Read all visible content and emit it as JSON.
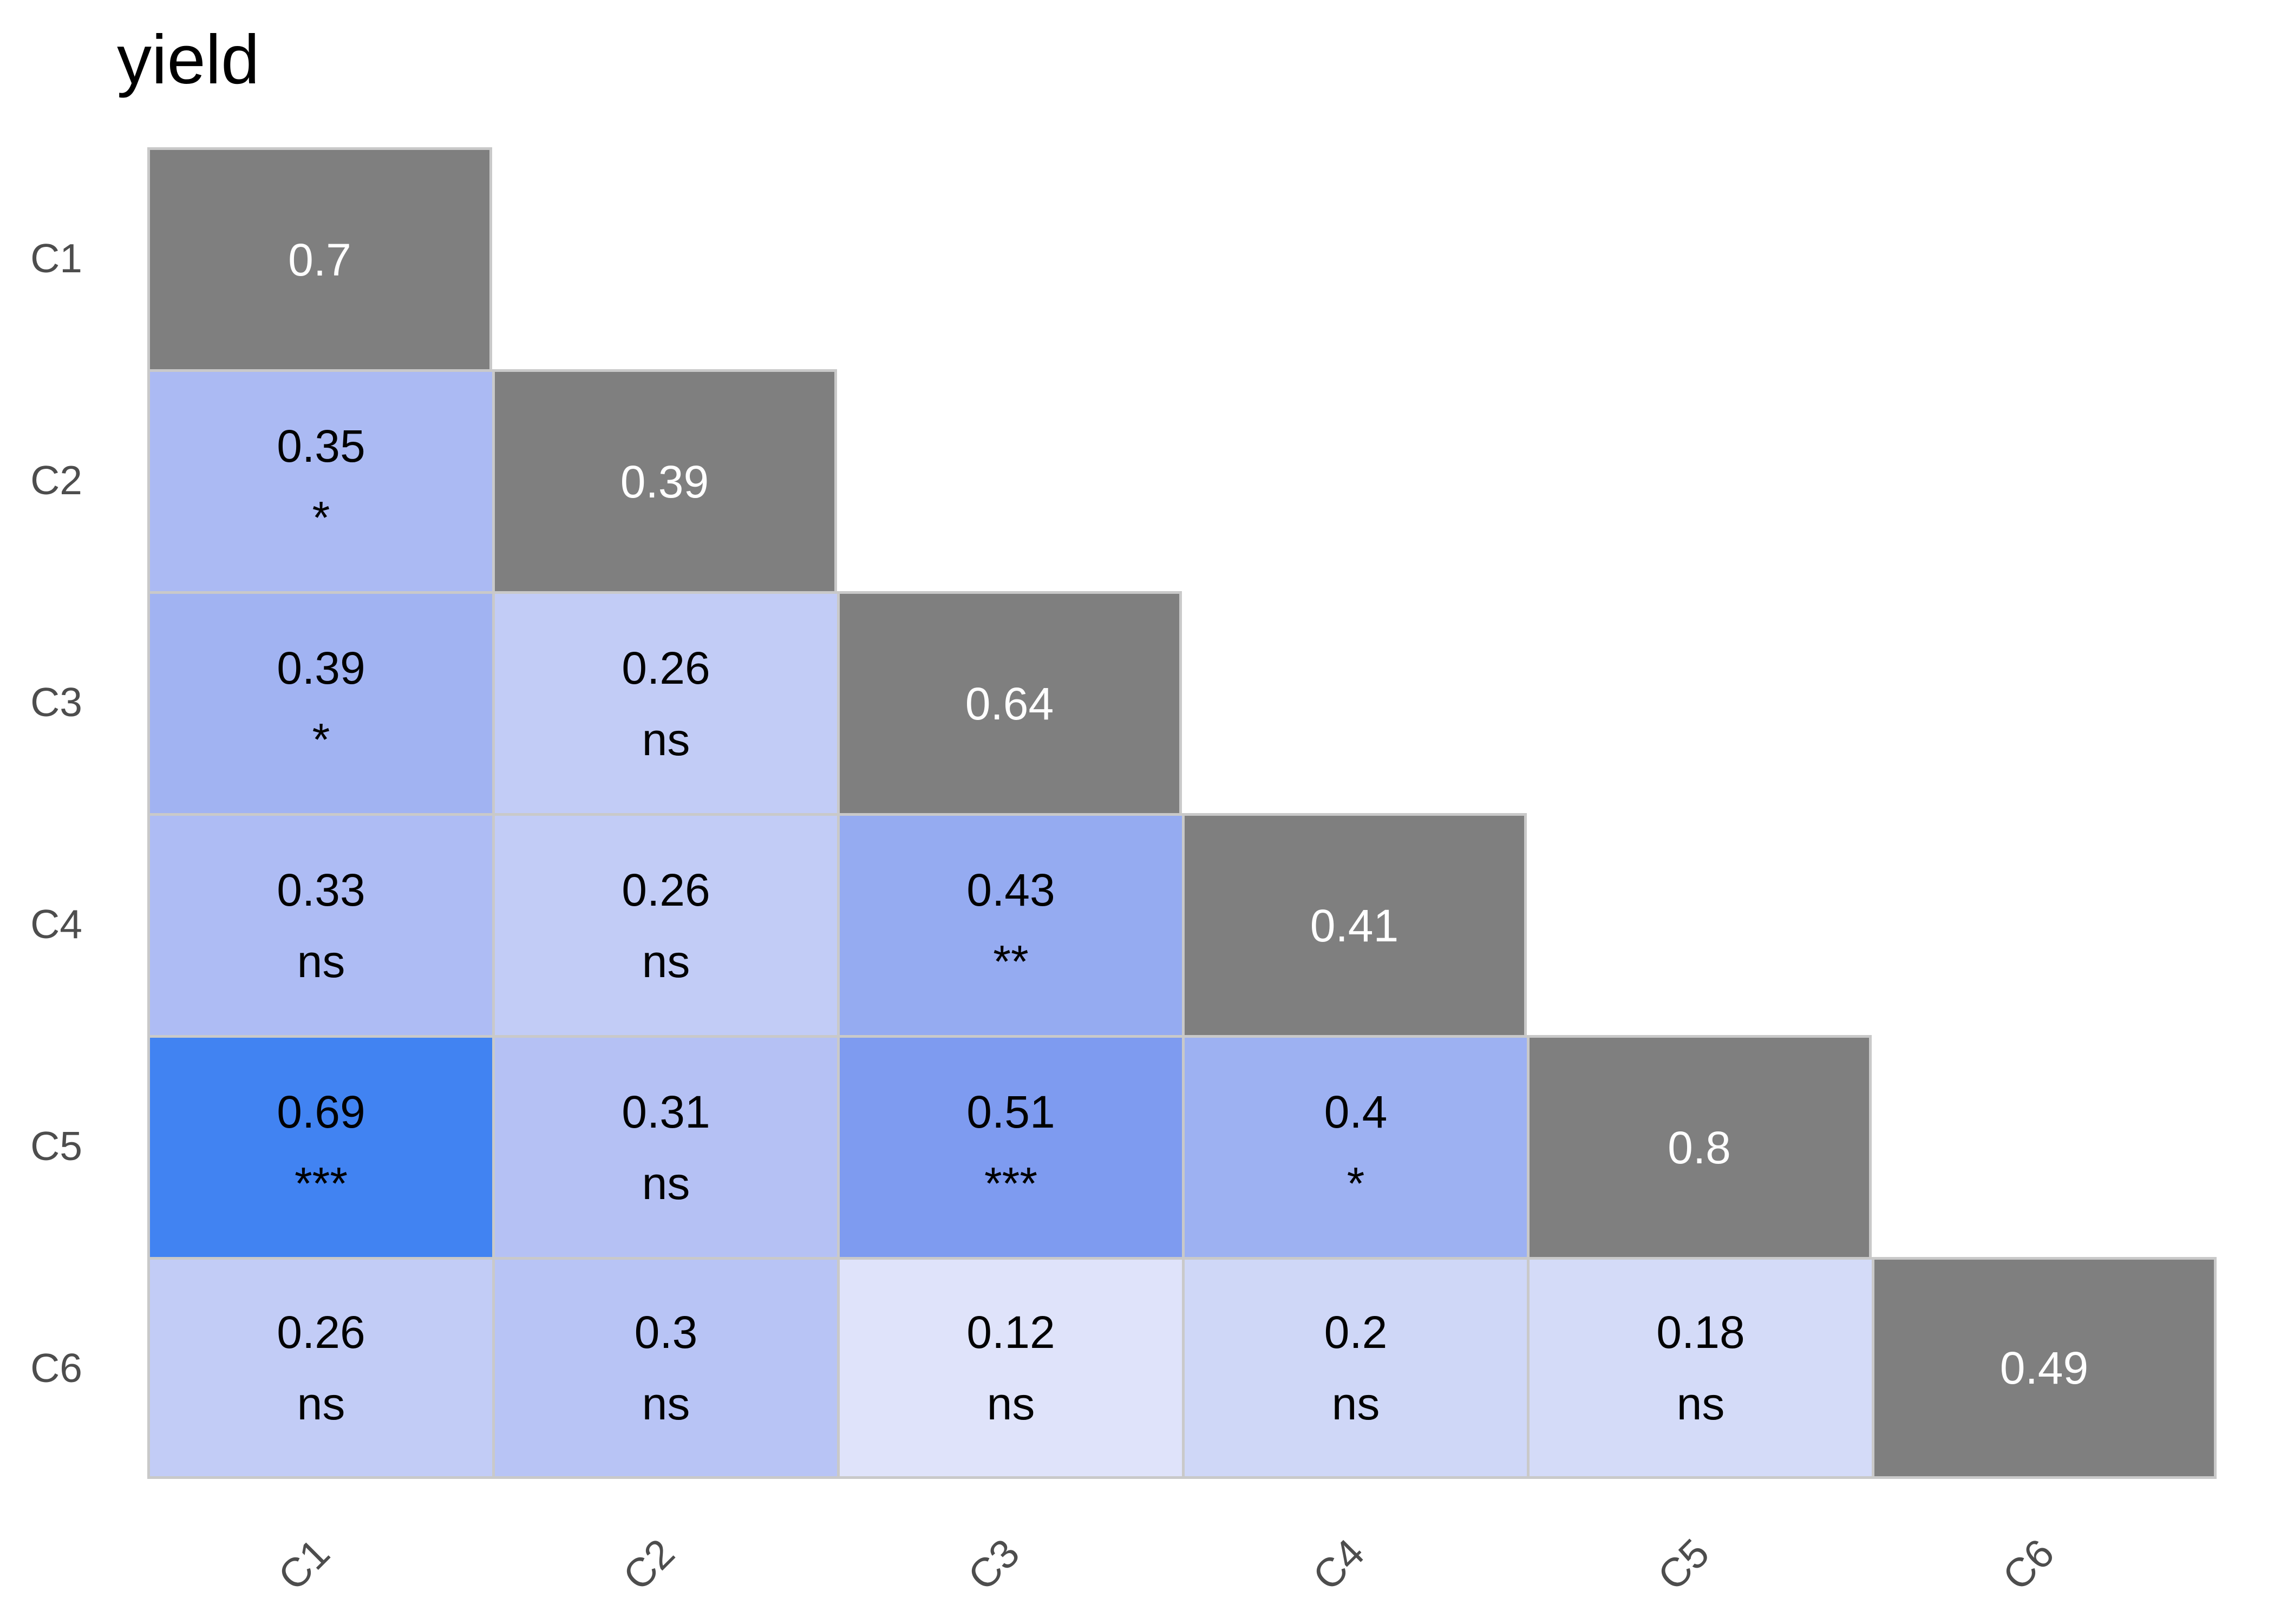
{
  "title": "yield",
  "axis": {
    "y_labels": [
      "C1",
      "C2",
      "C3",
      "C4",
      "C5",
      "C6"
    ],
    "x_labels": [
      "C1",
      "C2",
      "C3",
      "C4",
      "C5",
      "C6"
    ]
  },
  "colors": {
    "background": "#ffffff",
    "title_text": "#000000",
    "axis_text": "#4d4d4d",
    "grid_line": "#c9c9c9",
    "diagonal_fill": "#7f7f7f",
    "diagonal_text": "#ffffff",
    "value_text": "#000000"
  },
  "chart_data": {
    "type": "heatmap",
    "title": "yield",
    "shape": "lower-triangular-correlation-matrix",
    "x_labels": [
      "C1",
      "C2",
      "C3",
      "C4",
      "C5",
      "C6"
    ],
    "y_labels": [
      "C1",
      "C2",
      "C3",
      "C4",
      "C5",
      "C6"
    ],
    "legend": "none",
    "cells": [
      {
        "row": "C1",
        "col": "C1",
        "value": 0.7,
        "display": "0.7",
        "sig": null,
        "bg": "#7f7f7f",
        "fg": "#ffffff"
      },
      {
        "row": "C2",
        "col": "C1",
        "value": 0.35,
        "display": "0.35",
        "sig": "*",
        "bg": "#abbaf3",
        "fg": "#000000"
      },
      {
        "row": "C2",
        "col": "C2",
        "value": 0.39,
        "display": "0.39",
        "sig": null,
        "bg": "#7f7f7f",
        "fg": "#ffffff"
      },
      {
        "row": "C3",
        "col": "C1",
        "value": 0.39,
        "display": "0.39",
        "sig": "*",
        "bg": "#a1b3f2",
        "fg": "#000000"
      },
      {
        "row": "C3",
        "col": "C2",
        "value": 0.26,
        "display": "0.26",
        "sig": "ns",
        "bg": "#c2ccf6",
        "fg": "#000000"
      },
      {
        "row": "C3",
        "col": "C3",
        "value": 0.64,
        "display": "0.64",
        "sig": null,
        "bg": "#7f7f7f",
        "fg": "#ffffff"
      },
      {
        "row": "C4",
        "col": "C1",
        "value": 0.33,
        "display": "0.33",
        "sig": "ns",
        "bg": "#aebcf4",
        "fg": "#000000"
      },
      {
        "row": "C4",
        "col": "C2",
        "value": 0.26,
        "display": "0.26",
        "sig": "ns",
        "bg": "#c2ccf6",
        "fg": "#000000"
      },
      {
        "row": "C4",
        "col": "C3",
        "value": 0.43,
        "display": "0.43",
        "sig": "**",
        "bg": "#95abf1",
        "fg": "#000000"
      },
      {
        "row": "C4",
        "col": "C4",
        "value": 0.41,
        "display": "0.41",
        "sig": null,
        "bg": "#7f7f7f",
        "fg": "#ffffff"
      },
      {
        "row": "C5",
        "col": "C1",
        "value": 0.69,
        "display": "0.69",
        "sig": "***",
        "bg": "#4183f2",
        "fg": "#000000"
      },
      {
        "row": "C5",
        "col": "C2",
        "value": 0.31,
        "display": "0.31",
        "sig": "ns",
        "bg": "#b5c1f4",
        "fg": "#000000"
      },
      {
        "row": "C5",
        "col": "C3",
        "value": 0.51,
        "display": "0.51",
        "sig": "***",
        "bg": "#7e9bf0",
        "fg": "#000000"
      },
      {
        "row": "C5",
        "col": "C4",
        "value": 0.4,
        "display": "0.4",
        "sig": "*",
        "bg": "#9db1f2",
        "fg": "#000000"
      },
      {
        "row": "C5",
        "col": "C5",
        "value": 0.8,
        "display": "0.8",
        "sig": null,
        "bg": "#7f7f7f",
        "fg": "#ffffff"
      },
      {
        "row": "C6",
        "col": "C1",
        "value": 0.26,
        "display": "0.26",
        "sig": "ns",
        "bg": "#c2ccf6",
        "fg": "#000000"
      },
      {
        "row": "C6",
        "col": "C2",
        "value": 0.3,
        "display": "0.3",
        "sig": "ns",
        "bg": "#b8c4f5",
        "fg": "#000000"
      },
      {
        "row": "C6",
        "col": "C3",
        "value": 0.12,
        "display": "0.12",
        "sig": "ns",
        "bg": "#dfe3fa",
        "fg": "#000000"
      },
      {
        "row": "C6",
        "col": "C4",
        "value": 0.2,
        "display": "0.2",
        "sig": "ns",
        "bg": "#cfd7f7",
        "fg": "#000000"
      },
      {
        "row": "C6",
        "col": "C5",
        "value": 0.18,
        "display": "0.18",
        "sig": "ns",
        "bg": "#d4dbf8",
        "fg": "#000000"
      },
      {
        "row": "C6",
        "col": "C6",
        "value": 0.49,
        "display": "0.49",
        "sig": null,
        "bg": "#7f7f7f",
        "fg": "#ffffff"
      }
    ]
  }
}
